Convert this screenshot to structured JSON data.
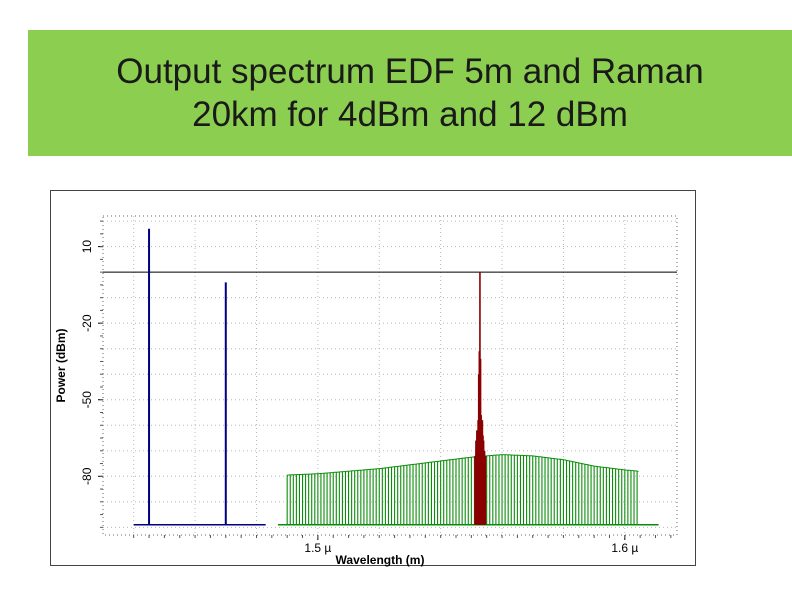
{
  "slide": {
    "title_line1": "Output spectrum EDF  5m and Raman",
    "title_line2": "20km for 4dBm and 12 dBm",
    "banner_color": "#8cce50"
  },
  "chart_data": {
    "type": "line",
    "xlabel": "Wavelength (m)",
    "ylabel": "Power (dBm)",
    "x_unit": "m",
    "xlim": [
      1.43e-06,
      1.617e-06
    ],
    "ylim": [
      -103,
      22
    ],
    "x_ticks": [
      {
        "value": 1.5e-06,
        "label": "1.5 µ"
      },
      {
        "value": 1.6e-06,
        "label": "1.6 µ"
      }
    ],
    "y_ticks": [
      {
        "value": 10,
        "label": "10"
      },
      {
        "value": -20,
        "label": "-20"
      },
      {
        "value": -50,
        "label": "-50"
      },
      {
        "value": -80,
        "label": "-80"
      }
    ],
    "grid": true,
    "colors": {
      "pump_lines": "#000080",
      "wdm_channels": "#0a8c0a",
      "amplified_peak": "#8b0000"
    },
    "series": [
      {
        "role": "pump_lines",
        "x": [
          1.445e-06,
          1.47e-06
        ],
        "y": [
          17,
          -4
        ],
        "baseline": -99
      },
      {
        "role": "pump_floor",
        "x": [
          1.44e-06,
          1.483e-06
        ],
        "y": [
          -99,
          -99
        ]
      },
      {
        "role": "wdm_channels",
        "baseline": -99,
        "floor_x": [
          1.487e-06,
          1.611e-06
        ],
        "envelope_x": [
          1.49e-06,
          1.5e-06,
          1.51e-06,
          1.52e-06,
          1.53e-06,
          1.54e-06,
          1.55e-06,
          1.56e-06,
          1.57e-06,
          1.58e-06,
          1.59e-06,
          1.6e-06,
          1.6045e-06
        ],
        "envelope_y": [
          -79.5,
          -79,
          -78,
          -77,
          -75.5,
          -74,
          -72.5,
          -71.5,
          -72,
          -73.5,
          -76,
          -77.5,
          -78
        ],
        "channel_spacing": 1e-09
      },
      {
        "role": "amplified_peak",
        "x": [
          1.5512e-06,
          1.5515e-06,
          1.5518e-06,
          1.552e-06,
          1.5522e-06,
          1.5524e-06,
          1.5526e-06,
          1.5528e-06,
          1.553e-06,
          1.5532e-06,
          1.5534e-06,
          1.5536e-06,
          1.5538e-06,
          1.554e-06,
          1.5543e-06,
          1.5546e-06
        ],
        "y": [
          -72,
          -66,
          -62,
          -64,
          -58,
          -40,
          -31,
          0,
          -34,
          -56,
          -60,
          -58,
          -64,
          -66,
          -70,
          -72
        ],
        "baseline": -99
      }
    ]
  }
}
